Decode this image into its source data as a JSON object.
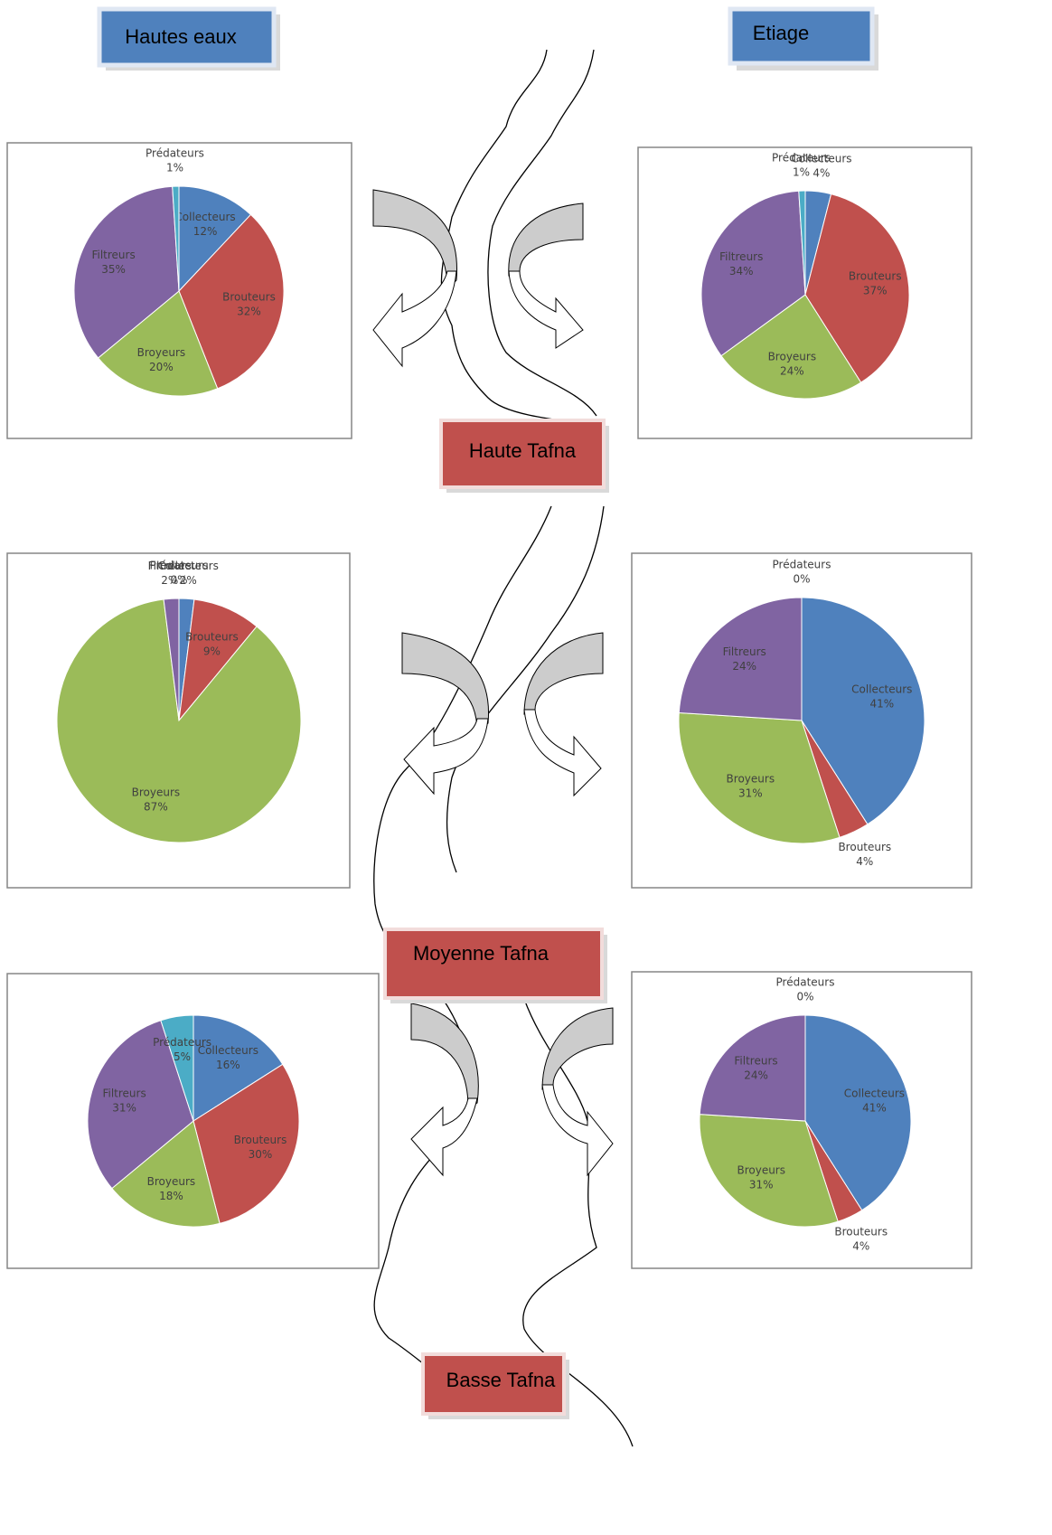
{
  "columns": [
    "Hautes eaux",
    "Etiage"
  ],
  "sections": [
    "Haute Tafna",
    "Moyenne Tafna",
    "Basse Tafna"
  ],
  "chart_data": [
    {
      "type": "pie",
      "categories": [
        "Collecteurs",
        "Brouteurs",
        "Broyeurs",
        "Filtreurs",
        "Prédateurs"
      ],
      "values": [
        12,
        32,
        20,
        35,
        1
      ],
      "value_labels": [
        "12%",
        "32%",
        "20%",
        "35%",
        "1%"
      ],
      "colors": [
        "#4f81bd",
        "#c0504d",
        "#9bbb59",
        "#8064a2",
        "#4bacc6"
      ]
    },
    {
      "type": "pie",
      "categories": [
        "Collecteurs",
        "Brouteurs",
        "Broyeurs",
        "Filtreurs",
        "Prédateurs"
      ],
      "values": [
        4,
        37,
        24,
        34,
        1
      ],
      "value_labels": [
        "4%",
        "37%",
        "24%",
        "34%",
        "1%"
      ],
      "colors": [
        "#4f81bd",
        "#c0504d",
        "#9bbb59",
        "#8064a2",
        "#4bacc6"
      ]
    },
    {
      "type": "pie",
      "categories": [
        "Collecteurs",
        "Brouteurs",
        "Broyeurs",
        "Filtreurs",
        "Prédateurs"
      ],
      "values": [
        2,
        9,
        87,
        2,
        0
      ],
      "value_labels": [
        "2%",
        "9%",
        "87%",
        "2%",
        "0%"
      ],
      "colors": [
        "#4f81bd",
        "#c0504d",
        "#9bbb59",
        "#8064a2",
        "#4bacc6"
      ]
    },
    {
      "type": "pie",
      "categories": [
        "Collecteurs",
        "Brouteurs",
        "Broyeurs",
        "Filtreurs",
        "Prédateurs"
      ],
      "values": [
        41,
        4,
        31,
        24,
        0
      ],
      "value_labels": [
        "41%",
        "4%",
        "31%",
        "24%",
        "0%"
      ],
      "colors": [
        "#4f81bd",
        "#c0504d",
        "#9bbb59",
        "#8064a2",
        "#4bacc6"
      ]
    },
    {
      "type": "pie",
      "categories": [
        "Collecteurs",
        "Brouteurs",
        "Broyeurs",
        "Filtreurs",
        "Prédateurs"
      ],
      "values": [
        16,
        30,
        18,
        31,
        5
      ],
      "value_labels": [
        "16%",
        "30%",
        "18%",
        "31%",
        "5%"
      ],
      "colors": [
        "#4f81bd",
        "#c0504d",
        "#9bbb59",
        "#8064a2",
        "#4bacc6"
      ]
    },
    {
      "type": "pie",
      "categories": [
        "Collecteurs",
        "Brouteurs",
        "Broyeurs",
        "Filtreurs",
        "Prédateurs"
      ],
      "values": [
        41,
        4,
        31,
        24,
        0
      ],
      "value_labels": [
        "41%",
        "4%",
        "31%",
        "24%",
        "0%"
      ],
      "colors": [
        "#4f81bd",
        "#c0504d",
        "#9bbb59",
        "#8064a2",
        "#4bacc6"
      ]
    }
  ]
}
